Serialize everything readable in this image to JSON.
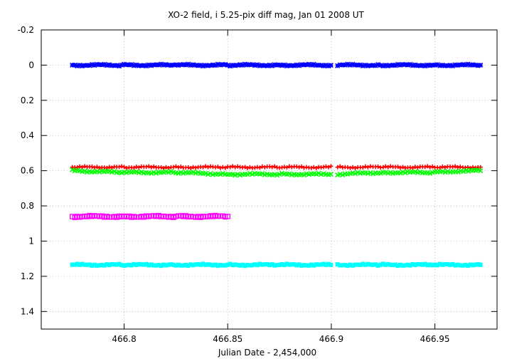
{
  "chart_data": {
    "type": "scatter",
    "title": "XO-2 field, i 5.25-pix diff mag, Jan 01 2008 UT",
    "xlabel": "Julian Date - 2,454,000",
    "ylabel": "",
    "xlim": [
      466.76,
      466.98
    ],
    "ylim": [
      1.5,
      -0.2
    ],
    "y_inverted": true,
    "grid": true,
    "x_ticks": [
      "466.8",
      "466.85",
      "466.9",
      "466.95"
    ],
    "x_tick_values": [
      466.8,
      466.85,
      466.9,
      466.95
    ],
    "y_ticks": [
      "-0.2",
      "0",
      "0.2",
      "0.4",
      "0.6",
      "0.8",
      "1",
      "1.2",
      "1.4"
    ],
    "y_tick_values": [
      -0.2,
      0,
      0.2,
      0.4,
      0.6,
      0.8,
      1.0,
      1.2,
      1.4
    ],
    "series": [
      {
        "color": "#0000ff",
        "marker": "star",
        "x": [
          466.775,
          466.8,
          466.825,
          466.85,
          466.875,
          466.901,
          466.903,
          466.925,
          466.95,
          466.972
        ],
        "y": [
          0.0,
          0.0,
          0.0,
          0.0,
          0.0,
          0.0,
          0.0,
          0.0,
          0.0,
          0.0
        ]
      },
      {
        "color": "#ff0000",
        "marker": "plus",
        "x": [
          466.775,
          466.8,
          466.825,
          466.85,
          466.875,
          466.901,
          466.903,
          466.925,
          466.95,
          466.972
        ],
        "y": [
          0.58,
          0.58,
          0.58,
          0.58,
          0.58,
          0.58,
          0.58,
          0.58,
          0.58,
          0.58
        ]
      },
      {
        "color": "#00ff00",
        "marker": "x",
        "x": [
          466.775,
          466.8,
          466.825,
          466.85,
          466.875,
          466.901,
          466.903,
          466.925,
          466.95,
          466.965,
          466.972
        ],
        "y": [
          0.6,
          0.61,
          0.61,
          0.62,
          0.62,
          0.62,
          0.62,
          0.61,
          0.61,
          0.6,
          0.6
        ]
      },
      {
        "color": "#ff00ff",
        "marker": "square",
        "x": [
          466.775,
          466.8,
          466.825,
          466.85
        ],
        "y": [
          0.86,
          0.86,
          0.86,
          0.86
        ]
      },
      {
        "color": "#00ffff",
        "marker": "filled-square",
        "x": [
          466.775,
          466.8,
          466.825,
          466.85,
          466.875,
          466.901,
          466.903,
          466.925,
          466.95,
          466.972
        ],
        "y": [
          1.135,
          1.135,
          1.135,
          1.135,
          1.135,
          1.135,
          1.135,
          1.135,
          1.135,
          1.135
        ]
      }
    ]
  }
}
